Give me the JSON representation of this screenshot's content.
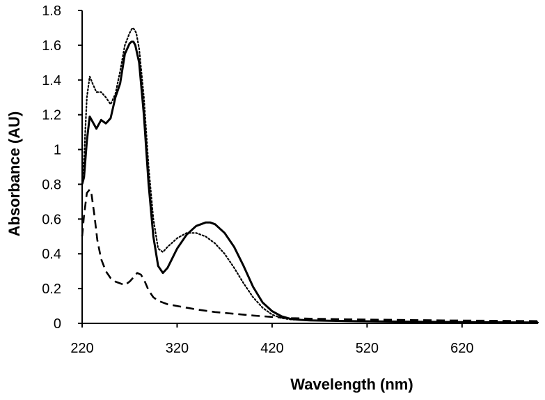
{
  "chart_data": {
    "type": "line",
    "title": "",
    "xlabel": "Wavelength (nm)",
    "ylabel": "Absorbance (AU)",
    "xlim": [
      220,
      700
    ],
    "ylim": [
      0,
      1.8
    ],
    "x_ticks": [
      220,
      320,
      420,
      520,
      620
    ],
    "x_tick_labels": [
      "220",
      "320",
      "420",
      "520",
      "620"
    ],
    "y_ticks": [
      0,
      0.2,
      0.4,
      0.6,
      0.8,
      1,
      1.2,
      1.4,
      1.6,
      1.8
    ],
    "y_tick_labels": [
      "0",
      "0.2",
      "0.4",
      "0.6",
      "0.8",
      "1",
      "1.2",
      "1.4",
      "1.6",
      "1.8"
    ],
    "grid": false,
    "legend": "none",
    "series": [
      {
        "name": "solid",
        "style": "solid",
        "color": "#000000",
        "x": [
          220,
          222,
          225,
          228,
          231,
          235,
          240,
          245,
          250,
          255,
          260,
          265,
          270,
          272,
          274,
          276,
          280,
          285,
          290,
          295,
          300,
          305,
          310,
          320,
          330,
          340,
          350,
          355,
          360,
          370,
          380,
          390,
          400,
          410,
          420,
          430,
          440,
          450,
          460,
          480,
          500,
          550,
          600,
          650,
          700
        ],
        "y": [
          0.8,
          0.84,
          1.05,
          1.19,
          1.16,
          1.12,
          1.17,
          1.15,
          1.18,
          1.3,
          1.38,
          1.55,
          1.61,
          1.62,
          1.62,
          1.6,
          1.5,
          1.2,
          0.8,
          0.5,
          0.33,
          0.29,
          0.32,
          0.43,
          0.51,
          0.56,
          0.58,
          0.58,
          0.57,
          0.52,
          0.44,
          0.33,
          0.21,
          0.12,
          0.07,
          0.04,
          0.025,
          0.02,
          0.017,
          0.015,
          0.013,
          0.01,
          0.008,
          0.006,
          0.005
        ]
      },
      {
        "name": "dotted",
        "style": "dotted",
        "color": "#000000",
        "x": [
          220,
          222,
          225,
          228,
          231,
          235,
          240,
          245,
          250,
          255,
          260,
          265,
          270,
          273,
          275,
          277,
          280,
          285,
          290,
          295,
          300,
          305,
          310,
          320,
          330,
          340,
          350,
          360,
          370,
          380,
          390,
          400,
          410,
          420,
          430,
          440,
          450,
          460,
          480,
          500,
          550,
          600,
          650,
          700
        ],
        "y": [
          0.82,
          0.95,
          1.3,
          1.42,
          1.38,
          1.33,
          1.33,
          1.3,
          1.26,
          1.32,
          1.45,
          1.6,
          1.67,
          1.7,
          1.69,
          1.67,
          1.58,
          1.3,
          0.9,
          0.6,
          0.43,
          0.41,
          0.44,
          0.49,
          0.52,
          0.52,
          0.5,
          0.46,
          0.4,
          0.32,
          0.23,
          0.15,
          0.09,
          0.05,
          0.03,
          0.022,
          0.02,
          0.018,
          0.015,
          0.013,
          0.01,
          0.008,
          0.006,
          0.005
        ]
      },
      {
        "name": "dashed",
        "style": "dashed",
        "color": "#000000",
        "x": [
          220,
          222,
          225,
          228,
          230,
          233,
          236,
          240,
          245,
          250,
          255,
          260,
          265,
          270,
          275,
          278,
          282,
          286,
          290,
          295,
          300,
          310,
          320,
          340,
          360,
          380,
          400,
          420,
          440,
          460,
          480,
          500,
          550,
          600,
          650,
          700
        ],
        "y": [
          0.5,
          0.62,
          0.75,
          0.77,
          0.74,
          0.62,
          0.48,
          0.37,
          0.3,
          0.26,
          0.24,
          0.23,
          0.22,
          0.24,
          0.27,
          0.29,
          0.28,
          0.24,
          0.19,
          0.15,
          0.13,
          0.11,
          0.1,
          0.08,
          0.065,
          0.055,
          0.045,
          0.037,
          0.03,
          0.027,
          0.025,
          0.023,
          0.02,
          0.017,
          0.015,
          0.013
        ]
      }
    ]
  }
}
